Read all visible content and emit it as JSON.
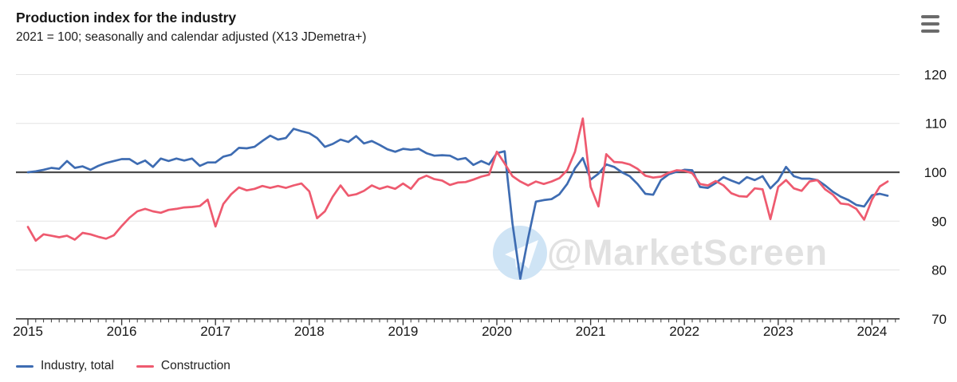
{
  "header": {
    "title": "Production index for the industry",
    "subtitle": "2021 = 100; seasonally and calendar adjusted (X13 JDemetra+)"
  },
  "menu": {
    "icon": "hamburger-menu-icon"
  },
  "watermark": {
    "text": "@MarketScreen",
    "icon": "telegram-plane-icon",
    "circle_color": "#cfe4f5",
    "text_color": "#e1e1e1"
  },
  "colors": {
    "grid": "#e3e3e3",
    "baseline": "#4d4d4d",
    "axis": "#3a3a3a",
    "tick_label": "#161616",
    "industry": "#3e6cb2",
    "construction": "#ee5a6f"
  },
  "chart_data": {
    "type": "line",
    "title": "Production index for the industry",
    "subtitle": "2021 = 100; seasonally and calendar adjusted (X13 JDemetra+)",
    "x_unit": "month",
    "x_start": "2015-01",
    "x_end": "2024-03",
    "x_tick_labels": [
      "2015",
      "2016",
      "2017",
      "2018",
      "2019",
      "2020",
      "2021",
      "2022",
      "2023",
      "2024"
    ],
    "y_tick_labels": [
      "120",
      "110",
      "100",
      "90",
      "80",
      "70"
    ],
    "y_tick_values": [
      120,
      110,
      100,
      90,
      80,
      70
    ],
    "ylim": [
      70,
      120
    ],
    "baseline_value": 100,
    "grid": true,
    "legend_position": "bottom-left",
    "series": [
      {
        "name": "Industry, total",
        "color": "#3e6cb2",
        "values": [
          100.0,
          100.2,
          100.5,
          100.9,
          100.7,
          102.3,
          100.9,
          101.2,
          100.5,
          101.3,
          101.9,
          102.3,
          102.7,
          102.7,
          101.7,
          102.4,
          101.1,
          102.8,
          102.3,
          102.8,
          102.4,
          102.8,
          101.3,
          102.0,
          102.0,
          103.2,
          103.6,
          105.0,
          104.9,
          105.2,
          106.4,
          107.5,
          106.7,
          107.0,
          108.9,
          108.4,
          108.0,
          107.0,
          105.2,
          105.8,
          106.7,
          106.2,
          107.4,
          105.9,
          106.4,
          105.6,
          104.7,
          104.2,
          104.8,
          104.6,
          104.8,
          103.9,
          103.4,
          103.5,
          103.4,
          102.6,
          102.9,
          101.5,
          102.3,
          101.6,
          103.9,
          104.3,
          89.5,
          78.2,
          86.5,
          94.0,
          94.3,
          94.5,
          95.5,
          97.6,
          100.8,
          102.9,
          98.5,
          99.7,
          101.6,
          101.1,
          100.0,
          99.2,
          97.6,
          95.6,
          95.4,
          98.4,
          99.6,
          100.1,
          100.5,
          100.4,
          97.0,
          96.8,
          97.8,
          99.0,
          98.3,
          97.7,
          99.0,
          98.4,
          99.2,
          96.7,
          98.3,
          101.1,
          99.2,
          98.7,
          98.7,
          98.4,
          97.3,
          96.0,
          95.0,
          94.3,
          93.3,
          93.0,
          95.3,
          95.6,
          95.2
        ]
      },
      {
        "name": "Construction",
        "color": "#ee5a6f",
        "values": [
          88.8,
          86.0,
          87.3,
          87.0,
          86.7,
          87.0,
          86.2,
          87.6,
          87.3,
          86.8,
          86.4,
          87.1,
          89.0,
          90.7,
          92.0,
          92.5,
          92.0,
          91.7,
          92.3,
          92.5,
          92.8,
          92.9,
          93.1,
          94.4,
          88.9,
          93.5,
          95.5,
          96.9,
          96.3,
          96.6,
          97.2,
          96.8,
          97.2,
          96.8,
          97.3,
          97.7,
          96.1,
          90.6,
          92.0,
          95.0,
          97.3,
          95.2,
          95.5,
          96.2,
          97.3,
          96.6,
          97.1,
          96.6,
          97.7,
          96.6,
          98.6,
          99.3,
          98.6,
          98.3,
          97.4,
          97.9,
          98.0,
          98.5,
          99.1,
          99.5,
          104.2,
          101.8,
          99.2,
          98.1,
          97.3,
          98.1,
          97.6,
          98.1,
          98.8,
          100.4,
          104.2,
          111.0,
          97.0,
          93.0,
          103.7,
          102.1,
          102.0,
          101.6,
          100.7,
          99.3,
          98.9,
          99.1,
          99.9,
          100.4,
          100.3,
          99.8,
          97.6,
          97.3,
          98.2,
          97.3,
          95.7,
          95.1,
          95.0,
          96.7,
          96.5,
          90.4,
          97.0,
          98.4,
          96.7,
          96.2,
          98.1,
          98.4,
          96.5,
          95.4,
          93.6,
          93.4,
          92.5,
          90.3,
          94.4,
          97.1,
          98.1
        ]
      }
    ]
  }
}
